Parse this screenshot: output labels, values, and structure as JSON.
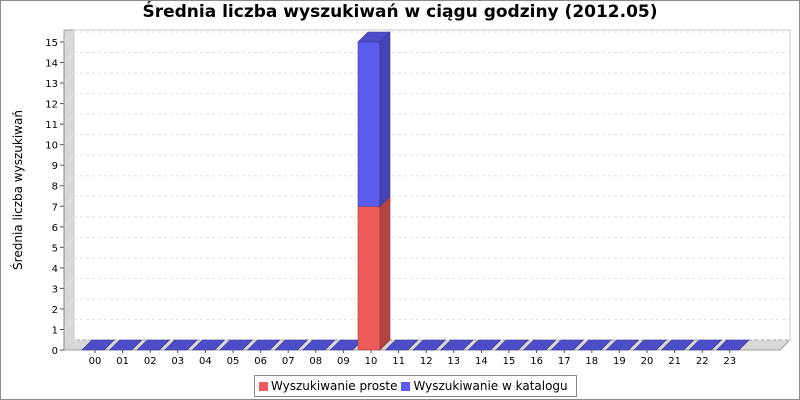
{
  "chart_data": {
    "type": "bar",
    "stacked": true,
    "title": "Średnia liczba wyszukiwań w ciągu godziny (2012.05)",
    "xlabel": "",
    "ylabel": "Średnia liczba wyszukiwań",
    "ylim": [
      0,
      15
    ],
    "yticks": [
      "0",
      "1",
      "2",
      "3",
      "4",
      "5",
      "6",
      "7",
      "8",
      "9",
      "10",
      "11",
      "12",
      "13",
      "14",
      "15"
    ],
    "grid": true,
    "legend_position": "bottom",
    "categories": [
      "00",
      "01",
      "02",
      "03",
      "04",
      "05",
      "06",
      "07",
      "08",
      "09",
      "10",
      "11",
      "12",
      "13",
      "14",
      "15",
      "16",
      "17",
      "18",
      "19",
      "20",
      "21",
      "22",
      "23"
    ],
    "series": [
      {
        "name": "Wyszukiwanie proste",
        "color": "#ee5b5b",
        "values": [
          0,
          0,
          0,
          0,
          0,
          0,
          0,
          0,
          0,
          0,
          7,
          0,
          0,
          0,
          0,
          0,
          0,
          0,
          0,
          0,
          0,
          0,
          0,
          0
        ]
      },
      {
        "name": "Wyszukiwanie w katalogu",
        "color": "#5b5bee",
        "values": [
          0,
          0,
          0,
          0,
          0,
          0,
          0,
          0,
          0,
          0,
          8,
          0,
          0,
          0,
          0,
          0,
          0,
          0,
          0,
          0,
          0,
          0,
          0,
          0
        ]
      }
    ]
  }
}
